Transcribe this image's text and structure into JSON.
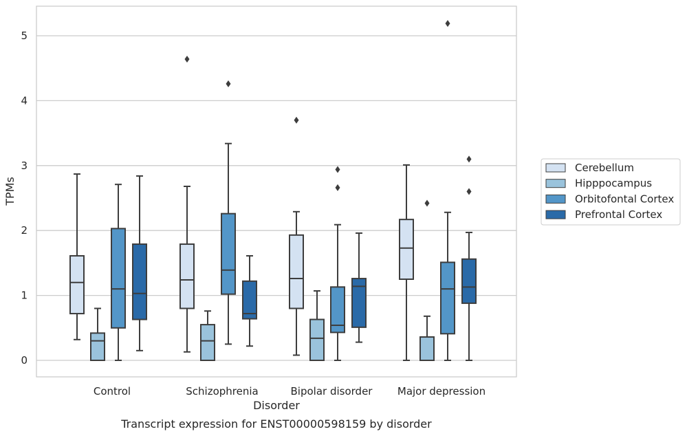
{
  "chart_data": {
    "type": "box",
    "caption": "Transcript expression for ENST00000598159 by disorder",
    "xlabel": "Disorder",
    "ylabel": "TPMs",
    "ylim": [
      -0.25,
      5.45
    ],
    "yticks": [
      0,
      1,
      2,
      3,
      4,
      5
    ],
    "ytick_labels": [
      "0",
      "1",
      "2",
      "3",
      "4",
      "5"
    ],
    "grid": "horizontal",
    "legend_position": "right",
    "categories": [
      "Control",
      "Schizophrenia",
      "Bipolar disorder",
      "Major depression"
    ],
    "series": [
      {
        "name": "Cerebellum",
        "color": "#d4e2f2",
        "boxes": [
          {
            "whislo": 0.32,
            "q1": 0.72,
            "med": 1.2,
            "q3": 1.61,
            "whishi": 2.87,
            "fliers": []
          },
          {
            "whislo": 0.13,
            "q1": 0.8,
            "med": 1.24,
            "q3": 1.79,
            "whishi": 2.68,
            "fliers": [
              4.64
            ]
          },
          {
            "whislo": 0.08,
            "q1": 0.8,
            "med": 1.26,
            "q3": 1.93,
            "whishi": 2.29,
            "fliers": [
              3.7
            ]
          },
          {
            "whislo": 0.0,
            "q1": 1.25,
            "med": 1.73,
            "q3": 2.17,
            "whishi": 3.01,
            "fliers": []
          }
        ]
      },
      {
        "name": "Hipppocampus",
        "color": "#9ac3dc",
        "boxes": [
          {
            "whislo": 0.0,
            "q1": 0.0,
            "med": 0.3,
            "q3": 0.42,
            "whishi": 0.8,
            "fliers": []
          },
          {
            "whislo": 0.0,
            "q1": 0.0,
            "med": 0.3,
            "q3": 0.55,
            "whishi": 0.76,
            "fliers": []
          },
          {
            "whislo": 0.0,
            "q1": 0.0,
            "med": 0.34,
            "q3": 0.63,
            "whishi": 1.07,
            "fliers": []
          },
          {
            "whislo": 0.0,
            "q1": 0.0,
            "med": 0.0,
            "q3": 0.36,
            "whishi": 0.68,
            "fliers": [
              2.42
            ]
          }
        ]
      },
      {
        "name": "Orbitofontal Cortex",
        "color": "#5396c8",
        "boxes": [
          {
            "whislo": 0.0,
            "q1": 0.5,
            "med": 1.1,
            "q3": 2.03,
            "whishi": 2.71,
            "fliers": []
          },
          {
            "whislo": 0.25,
            "q1": 1.02,
            "med": 1.39,
            "q3": 2.26,
            "whishi": 3.34,
            "fliers": [
              4.26
            ]
          },
          {
            "whislo": 0.0,
            "q1": 0.43,
            "med": 0.54,
            "q3": 1.13,
            "whishi": 2.09,
            "fliers": [
              2.66,
              2.94
            ]
          },
          {
            "whislo": 0.0,
            "q1": 0.41,
            "med": 1.1,
            "q3": 1.51,
            "whishi": 2.28,
            "fliers": [
              5.19
            ]
          }
        ]
      },
      {
        "name": "Prefrontal Cortex",
        "color": "#2a6aa8",
        "boxes": [
          {
            "whislo": 0.15,
            "q1": 0.63,
            "med": 1.03,
            "q3": 1.79,
            "whishi": 2.84,
            "fliers": []
          },
          {
            "whislo": 0.22,
            "q1": 0.64,
            "med": 0.72,
            "q3": 1.22,
            "whishi": 1.61,
            "fliers": []
          },
          {
            "whislo": 0.28,
            "q1": 0.51,
            "med": 1.14,
            "q3": 1.26,
            "whishi": 1.96,
            "fliers": []
          },
          {
            "whislo": 0.0,
            "q1": 0.88,
            "med": 1.13,
            "q3": 1.56,
            "whishi": 1.97,
            "fliers": [
              2.6,
              3.1
            ]
          }
        ]
      }
    ]
  }
}
